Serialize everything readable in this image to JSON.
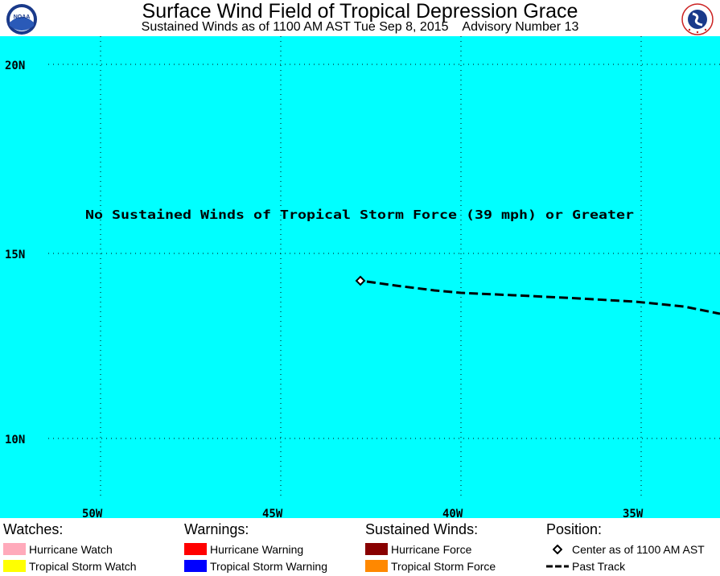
{
  "header": {
    "title": "Surface Wind Field of Tropical Depression Grace",
    "subtitle": "Sustained Winds as of 1100 AM AST Tue Sep 8, 2015    Advisory Number 13",
    "left_logo": "NOAA",
    "right_logo_icon": "national-weather-service-logo"
  },
  "map": {
    "background_color": "#00ffff",
    "message": "No Sustained Winds of Tropical Storm Force (39 mph) or Greater",
    "latitude_labels": [
      "20N",
      "15N",
      "10N"
    ],
    "longitude_labels": [
      "50W",
      "45W",
      "40W",
      "35W"
    ],
    "center_marker": "Center as of 1100 AM AST",
    "track_line": "Past Track"
  },
  "legend": {
    "watches": {
      "heading": "Watches:",
      "items": [
        {
          "label": "Hurricane Watch",
          "color": "#ffaabb"
        },
        {
          "label": "Tropical Storm Watch",
          "color": "#ffff00"
        }
      ]
    },
    "warnings": {
      "heading": "Warnings:",
      "items": [
        {
          "label": "Hurricane Warning",
          "color": "#ff0000"
        },
        {
          "label": "Tropical Storm Warning",
          "color": "#0000ff"
        }
      ]
    },
    "winds": {
      "heading": "Sustained Winds:",
      "items": [
        {
          "label": "Hurricane Force",
          "color": "#880000"
        },
        {
          "label": "Tropical Storm Force",
          "color": "#ff8800"
        }
      ]
    },
    "position": {
      "heading": "Position:",
      "items": [
        {
          "label": "Center as of 1100 AM AST",
          "icon": "diamond-icon"
        },
        {
          "label": "Past Track",
          "icon": "dashed-line-icon"
        }
      ]
    }
  }
}
